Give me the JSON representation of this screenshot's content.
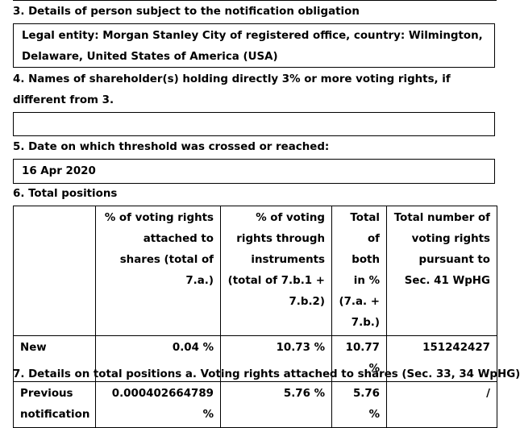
{
  "section3": {
    "heading": "3. Details of person subject to the notification obligation",
    "content": "Legal entity: Morgan Stanley City of registered office, country: Wilmington, Delaware, United States of America (USA)"
  },
  "section4": {
    "heading": "4. Names of shareholder(s) holding directly 3% or more voting rights, if different from 3.",
    "content": ""
  },
  "section5": {
    "heading": "5. Date on which threshold was crossed or reached:",
    "content": "16 Apr 2020"
  },
  "section6": {
    "heading": "6. Total positions",
    "columns": [
      "",
      "% of voting rights attached to shares (total of 7.a.)",
      "% of voting rights through instruments (total of 7.b.1 + 7.b.2)",
      "Total of both in % (7.a. + 7.b.)",
      "Total number of voting rights pursuant to Sec. 41 WpHG"
    ],
    "rows": [
      {
        "label": "New",
        "shares": "0.04 %",
        "instruments": "10.73 %",
        "total": "10.77 %",
        "voting_rights": "151242427"
      },
      {
        "label": "Previous notification",
        "shares": "0.000402664789 %",
        "instruments": "5.76 %",
        "total": "5.76 %",
        "voting_rights": "/"
      }
    ]
  },
  "section7": {
    "heading": "7. Details on total positions a. Voting rights attached to shares (Sec. 33, 34 WpHG)"
  }
}
